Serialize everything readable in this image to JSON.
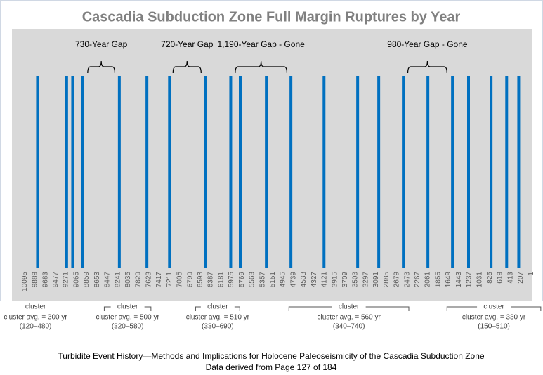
{
  "chart_data": {
    "type": "timeline",
    "title": "Cascadia Subduction Zone Full Margin Ruptures by Year",
    "color": "#0070c0",
    "x": [
      9840,
      9260,
      9140,
      8950,
      8210,
      7660,
      7210,
      6500,
      5990,
      5800,
      5280,
      4790,
      4130,
      3460,
      3040,
      2550,
      2060,
      1570,
      1250,
      800,
      490,
      250
    ],
    "xlim": [
      10350,
      -10
    ],
    "xticks": [
      10095,
      9889,
      9683,
      9477,
      9271,
      9065,
      8859,
      8653,
      8447,
      8241,
      8035,
      7829,
      7623,
      7417,
      7211,
      7005,
      6799,
      6593,
      6387,
      6181,
      5975,
      5769,
      5563,
      5357,
      5151,
      4945,
      4739,
      4533,
      4327,
      4121,
      3915,
      3709,
      3503,
      3297,
      3091,
      2885,
      2679,
      2473,
      2267,
      2061,
      1855,
      1649,
      1443,
      1237,
      1031,
      825,
      619,
      413,
      207,
      1
    ],
    "annotations": [
      {
        "text": "730-Year Gap",
        "from": 8840,
        "to": 8300
      },
      {
        "text": "720-Year Gap",
        "from": 7140,
        "to": 6580
      },
      {
        "text": "1,190-Year Gap - Gone",
        "from": 5900,
        "to": 4870
      },
      {
        "text": "980-Year Gap - Gone",
        "from": 2460,
        "to": 1680
      }
    ],
    "clusters": [
      {
        "label": "cluster",
        "average": "cluster avg. = 300 yr",
        "range": "(120–480)",
        "center": 9880
      },
      {
        "label": "cluster",
        "average": "cluster avg. = 500 yr",
        "range": "(320–580)",
        "from": 8510,
        "to": 7580
      },
      {
        "label": "cluster",
        "average": "cluster avg. = 510 yr",
        "range": "(330–690)",
        "from": 6690,
        "to": 5810
      },
      {
        "label": "cluster",
        "average": "cluster avg. = 560 yr",
        "range": "(340–740)",
        "from": 4830,
        "to": 2440
      },
      {
        "label": "cluster",
        "average": "cluster avg. = 330 yr",
        "range": "(150–510)",
        "from": 1680,
        "to": -190
      }
    ],
    "caption": [
      "Turbidite Event History—Methods and Implications for Holocene Paleoseismicity of the Cascadia Subduction Zone",
      "Data derived from Page 127 of 184"
    ]
  }
}
